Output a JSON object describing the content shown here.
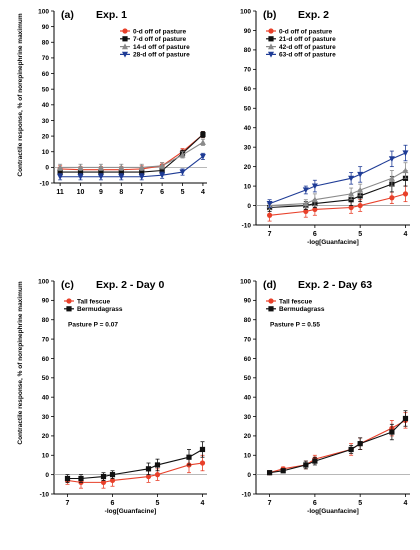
{
  "figure": {
    "ylabel_top": "Contractile response, % of norepinephrine maximum",
    "ylabel_bottom": "Contractile response, % of norepinephrine maximum"
  },
  "chart_data": [
    {
      "type": "line",
      "panel": "(a)",
      "title": "Exp. 1",
      "xlabel": "",
      "ylabel": "Contractile response, % of norepinephrine maximum",
      "xlim": [
        11.3,
        3.8
      ],
      "ylim": [
        -10,
        100
      ],
      "xticks": [
        11,
        10,
        9,
        8,
        7,
        6,
        5,
        4
      ],
      "yticks": [
        -10,
        0,
        10,
        20,
        30,
        40,
        50,
        60,
        70,
        80,
        90,
        100
      ],
      "zero_line": true,
      "legend_position": "top-right",
      "series": [
        {
          "name": "0-d off of pasture",
          "color": "#e8402a",
          "marker": "circle",
          "x": [
            11,
            10,
            9,
            8,
            7,
            6,
            5,
            4
          ],
          "y": [
            -1,
            -1.5,
            -1.5,
            -1.5,
            -1,
            1,
            10,
            21
          ],
          "err": [
            2,
            2,
            2,
            2,
            2,
            2,
            2,
            2
          ]
        },
        {
          "name": "7-d off of pasture",
          "color": "#111111",
          "marker": "square",
          "x": [
            11,
            10,
            9,
            8,
            7,
            6,
            5,
            4
          ],
          "y": [
            -3,
            -3,
            -3,
            -3,
            -3,
            -2,
            9,
            21
          ],
          "err": [
            2,
            2,
            2,
            2,
            2,
            2,
            2,
            2
          ]
        },
        {
          "name": "14-d off of pasture",
          "color": "#8a8a8a",
          "marker": "triangle-up",
          "x": [
            11,
            10,
            9,
            8,
            7,
            6,
            5,
            4
          ],
          "y": [
            0,
            0,
            0,
            0,
            0,
            1,
            8,
            16
          ],
          "err": [
            2,
            2,
            2,
            2,
            2,
            2,
            2,
            2
          ]
        },
        {
          "name": "28-d off of pasture",
          "color": "#1f3c96",
          "marker": "triangle-down",
          "x": [
            11,
            10,
            9,
            8,
            7,
            6,
            5,
            4
          ],
          "y": [
            -6,
            -6,
            -6,
            -6,
            -6,
            -5,
            -3,
            7
          ],
          "err": [
            2,
            2,
            2,
            2,
            2,
            2,
            2,
            2
          ]
        }
      ]
    },
    {
      "type": "line",
      "panel": "(b)",
      "title": "Exp. 2",
      "xlabel": "-log[Guanfacine]",
      "ylabel": "",
      "xlim": [
        7.3,
        3.9
      ],
      "ylim": [
        -10,
        100
      ],
      "xticks": [
        7,
        6,
        5,
        4
      ],
      "yticks": [
        -10,
        0,
        10,
        20,
        30,
        40,
        50,
        60,
        70,
        80,
        90,
        100
      ],
      "zero_line": true,
      "legend_position": "top-left",
      "series": [
        {
          "name": "0-d off of pasture",
          "color": "#e8402a",
          "marker": "circle",
          "x": [
            7,
            6.2,
            6,
            5.2,
            5,
            4.3,
            4
          ],
          "y": [
            -5,
            -3,
            -2,
            -1,
            0,
            4,
            6
          ],
          "err": [
            3,
            3,
            3,
            3,
            3,
            3,
            4
          ]
        },
        {
          "name": "21-d off of pasture",
          "color": "#111111",
          "marker": "square",
          "x": [
            7,
            6.2,
            6,
            5.2,
            5,
            4.3,
            4
          ],
          "y": [
            -1,
            0,
            1,
            3,
            5,
            11,
            14
          ],
          "err": [
            2,
            2,
            2,
            3,
            3,
            4,
            4
          ]
        },
        {
          "name": "42-d off of pasture",
          "color": "#8a8a8a",
          "marker": "triangle-up",
          "x": [
            7,
            6.2,
            6,
            5.2,
            5,
            4.3,
            4
          ],
          "y": [
            0,
            1,
            3,
            6,
            8,
            14,
            18
          ],
          "err": [
            2,
            2,
            3,
            3,
            3,
            4,
            4
          ]
        },
        {
          "name": "63-d off of pasture",
          "color": "#1f3c96",
          "marker": "triangle-down",
          "x": [
            7,
            6.2,
            6,
            5.2,
            5,
            4.3,
            4
          ],
          "y": [
            1,
            8,
            10,
            14,
            16,
            24,
            27
          ],
          "err": [
            2,
            2,
            3,
            3,
            4,
            4,
            4
          ]
        }
      ]
    },
    {
      "type": "line",
      "panel": "(c)",
      "title": "Exp. 2 - Day 0",
      "xlabel": "-log[Guanfacine]",
      "ylabel": "Contractile response, % of norepinephrine maximum",
      "xlim": [
        7.3,
        3.9
      ],
      "ylim": [
        -10,
        100
      ],
      "xticks": [
        7,
        6,
        5,
        4
      ],
      "yticks": [
        -10,
        0,
        10,
        20,
        30,
        40,
        50,
        60,
        70,
        80,
        90,
        100
      ],
      "zero_line": true,
      "legend_position": "top-left",
      "annotation": "Pasture P = 0.07",
      "series": [
        {
          "name": "Tall fescue",
          "color": "#e8402a",
          "marker": "circle",
          "x": [
            7,
            6.7,
            6.2,
            6,
            5.2,
            5,
            4.3,
            4
          ],
          "y": [
            -3,
            -4,
            -4,
            -3,
            -1,
            0,
            5,
            6
          ],
          "err": [
            2,
            3,
            3,
            3,
            3,
            3,
            4,
            4
          ]
        },
        {
          "name": "Bermudagrass",
          "color": "#111111",
          "marker": "square",
          "x": [
            7,
            6.7,
            6.2,
            6,
            5.2,
            5,
            4.3,
            4
          ],
          "y": [
            -2,
            -2,
            -1,
            0,
            3,
            5,
            9,
            13
          ],
          "err": [
            2,
            2,
            2,
            2,
            3,
            3,
            4,
            4
          ]
        }
      ]
    },
    {
      "type": "line",
      "panel": "(d)",
      "title": "Exp. 2 - Day 63",
      "xlabel": "-log[Guanfacine]",
      "ylabel": "",
      "xlim": [
        7.3,
        3.9
      ],
      "ylim": [
        -10,
        100
      ],
      "xticks": [
        7,
        6,
        5,
        4
      ],
      "yticks": [
        -10,
        0,
        10,
        20,
        30,
        40,
        50,
        60,
        70,
        80,
        90,
        100
      ],
      "zero_line": true,
      "legend_position": "top-left",
      "annotation": "Pasture P = 0.55",
      "series": [
        {
          "name": "Tall fescue",
          "color": "#e8402a",
          "marker": "circle",
          "x": [
            7,
            6.7,
            6.2,
            6,
            5.2,
            5,
            4.3,
            4
          ],
          "y": [
            1,
            3,
            5,
            8,
            13,
            16,
            24,
            28
          ],
          "err": [
            1,
            1,
            2,
            2,
            3,
            3,
            4,
            4
          ]
        },
        {
          "name": "Bermudagrass",
          "color": "#111111",
          "marker": "square",
          "x": [
            7,
            6.7,
            6.2,
            6,
            5.2,
            5,
            4.3,
            4
          ],
          "y": [
            1,
            2,
            5,
            7,
            13,
            16,
            22,
            29
          ],
          "err": [
            1,
            1,
            2,
            2,
            2,
            3,
            4,
            4
          ]
        }
      ]
    }
  ]
}
